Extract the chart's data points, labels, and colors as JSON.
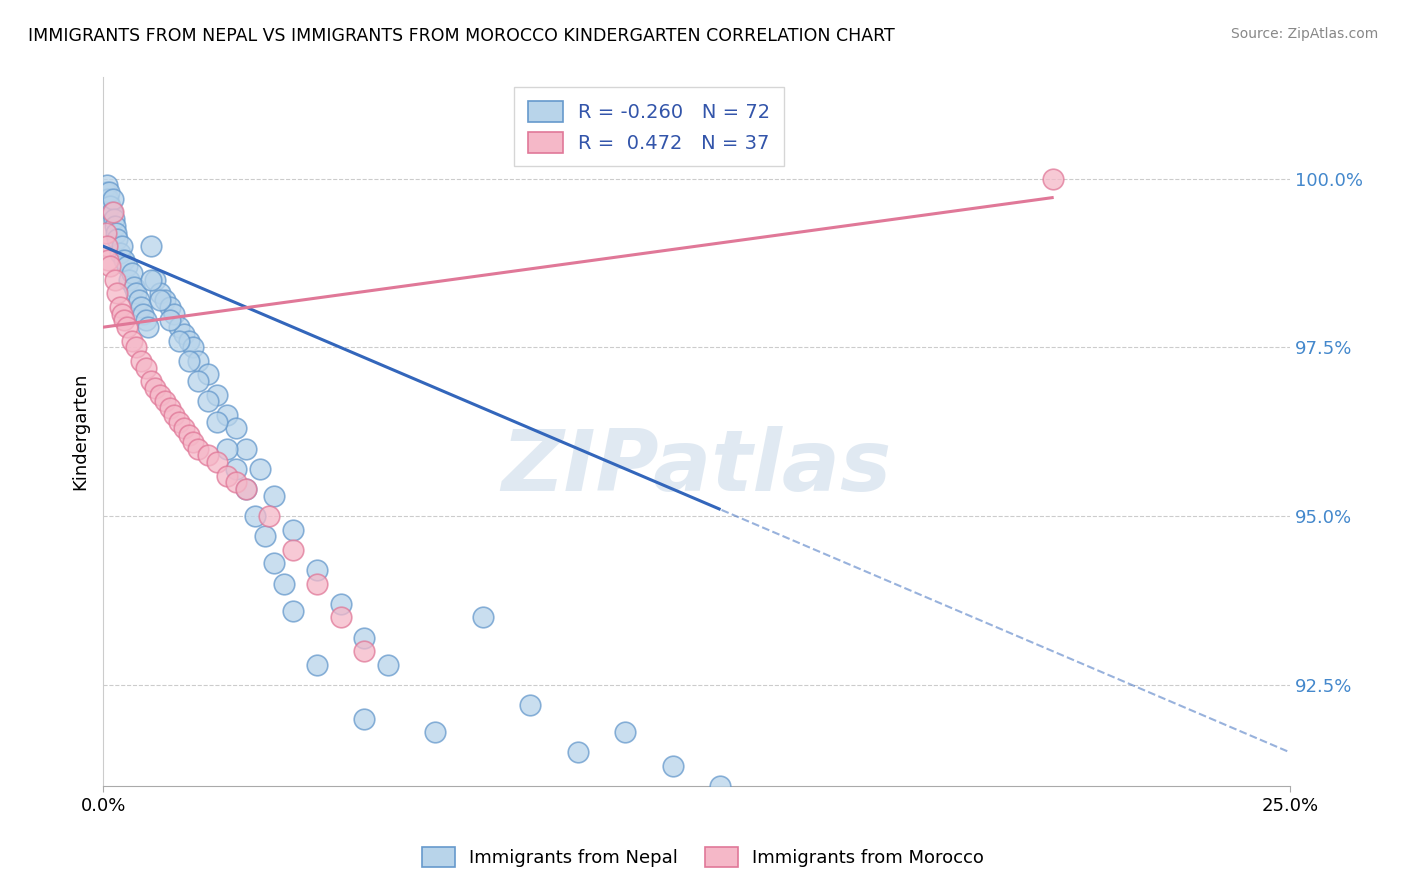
{
  "title": "IMMIGRANTS FROM NEPAL VS IMMIGRANTS FROM MOROCCO KINDERGARTEN CORRELATION CHART",
  "source": "Source: ZipAtlas.com",
  "ylabel": "Kindergarten",
  "ytick_vals": [
    100.0,
    97.5,
    95.0,
    92.5
  ],
  "ytick_labels": [
    "100.0%",
    "97.5%",
    "95.0%",
    "92.5%"
  ],
  "xlim": [
    0.0,
    25.0
  ],
  "ylim": [
    91.0,
    101.5
  ],
  "nepal_color": "#b8d4ea",
  "morocco_color": "#f5b8c8",
  "nepal_edge": "#6699cc",
  "morocco_edge": "#e07898",
  "trend_nepal_color": "#3366bb",
  "trend_morocco_color": "#e07898",
  "legend_nepal_R": "-0.260",
  "legend_nepal_N": "72",
  "legend_morocco_R": "0.472",
  "legend_morocco_N": "37",
  "nepal_x": [
    0.05,
    0.08,
    0.1,
    0.12,
    0.15,
    0.18,
    0.2,
    0.22,
    0.25,
    0.28,
    0.3,
    0.35,
    0.4,
    0.45,
    0.5,
    0.55,
    0.6,
    0.65,
    0.7,
    0.75,
    0.8,
    0.85,
    0.9,
    0.95,
    1.0,
    1.1,
    1.2,
    1.3,
    1.4,
    1.5,
    1.6,
    1.7,
    1.8,
    1.9,
    2.0,
    2.2,
    2.4,
    2.6,
    2.8,
    3.0,
    3.3,
    3.6,
    4.0,
    4.5,
    5.0,
    5.5,
    6.0,
    7.0,
    8.0,
    9.0,
    10.0,
    11.0,
    12.0,
    13.0,
    1.0,
    1.2,
    1.4,
    1.6,
    1.8,
    2.0,
    2.2,
    2.4,
    2.6,
    2.8,
    3.0,
    3.2,
    3.4,
    3.6,
    3.8,
    4.0,
    4.5,
    5.5
  ],
  "nepal_y": [
    99.8,
    99.9,
    99.7,
    99.8,
    99.6,
    99.5,
    99.7,
    99.4,
    99.3,
    99.2,
    99.1,
    98.9,
    99.0,
    98.8,
    98.7,
    98.5,
    98.6,
    98.4,
    98.3,
    98.2,
    98.1,
    98.0,
    97.9,
    97.8,
    99.0,
    98.5,
    98.3,
    98.2,
    98.1,
    98.0,
    97.8,
    97.7,
    97.6,
    97.5,
    97.3,
    97.1,
    96.8,
    96.5,
    96.3,
    96.0,
    95.7,
    95.3,
    94.8,
    94.2,
    93.7,
    93.2,
    92.8,
    91.8,
    93.5,
    92.2,
    91.5,
    91.8,
    91.3,
    91.0,
    98.5,
    98.2,
    97.9,
    97.6,
    97.3,
    97.0,
    96.7,
    96.4,
    96.0,
    95.7,
    95.4,
    95.0,
    94.7,
    94.3,
    94.0,
    93.6,
    92.8,
    92.0
  ],
  "morocco_x": [
    0.05,
    0.08,
    0.1,
    0.15,
    0.2,
    0.25,
    0.3,
    0.35,
    0.4,
    0.45,
    0.5,
    0.6,
    0.7,
    0.8,
    0.9,
    1.0,
    1.1,
    1.2,
    1.3,
    1.4,
    1.5,
    1.6,
    1.7,
    1.8,
    1.9,
    2.0,
    2.2,
    2.4,
    2.6,
    2.8,
    3.0,
    3.5,
    4.0,
    4.5,
    5.0,
    5.5,
    20.0
  ],
  "morocco_y": [
    99.2,
    99.0,
    98.8,
    98.7,
    99.5,
    98.5,
    98.3,
    98.1,
    98.0,
    97.9,
    97.8,
    97.6,
    97.5,
    97.3,
    97.2,
    97.0,
    96.9,
    96.8,
    96.7,
    96.6,
    96.5,
    96.4,
    96.3,
    96.2,
    96.1,
    96.0,
    95.9,
    95.8,
    95.6,
    95.5,
    95.4,
    95.0,
    94.5,
    94.0,
    93.5,
    93.0,
    100.0
  ],
  "nepal_trend_x0": 0.0,
  "nepal_trend_y0": 99.0,
  "nepal_trend_x1": 25.0,
  "nepal_trend_y1": 91.5,
  "nepal_solid_max_x": 13.0,
  "morocco_trend_x0": 0.0,
  "morocco_trend_y0": 97.8,
  "morocco_trend_x1": 25.0,
  "morocco_trend_y1": 100.2,
  "morocco_solid_max_x": 20.0,
  "watermark": "ZIPatlas"
}
